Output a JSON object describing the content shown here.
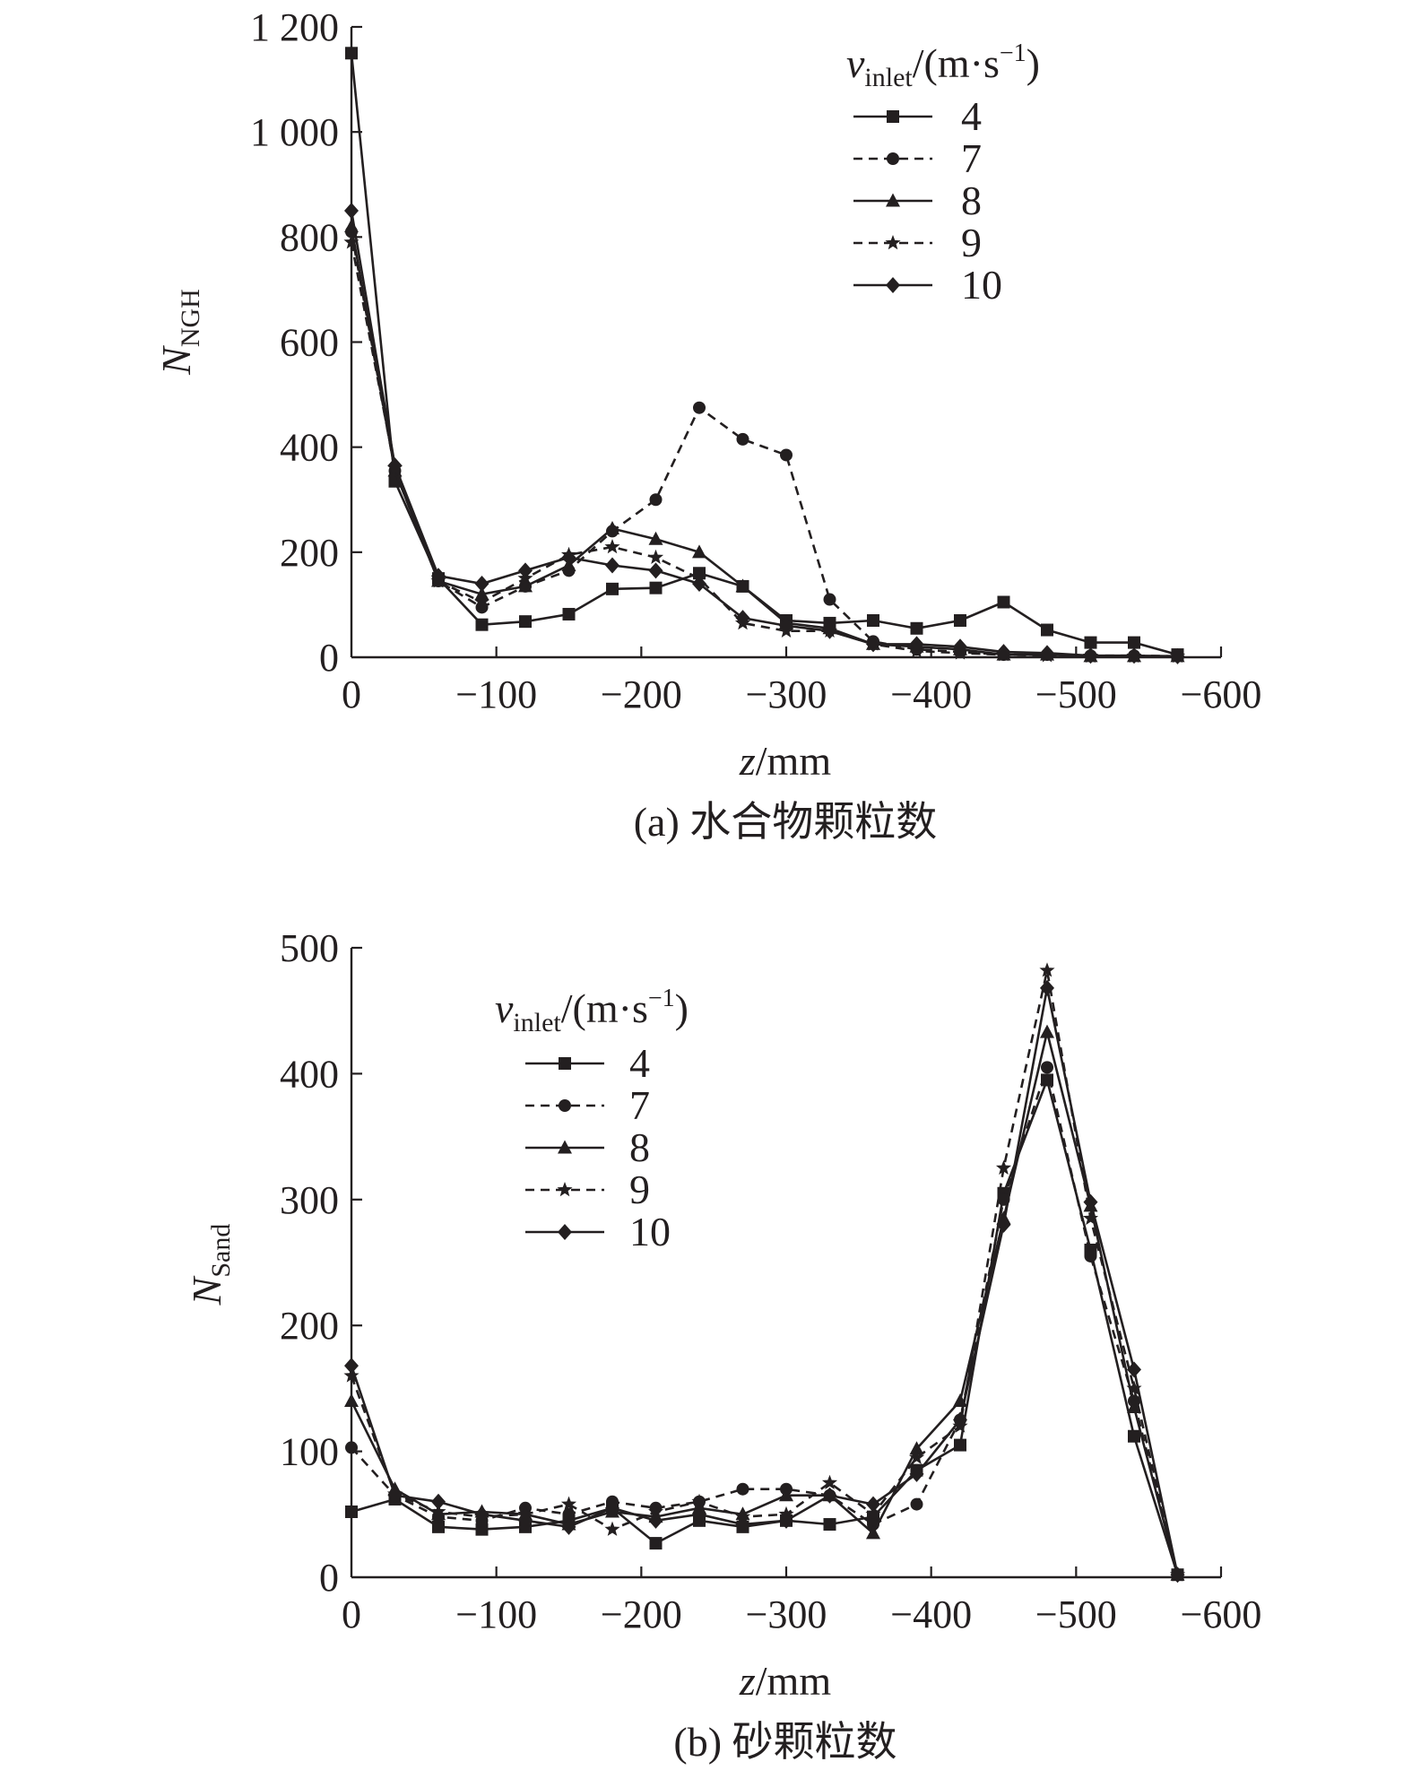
{
  "chart_data": [
    {
      "type": "line",
      "panel": "a",
      "caption": "(a) 水合物颗粒数",
      "xlabel_var": "z",
      "xlabel_unit": "/mm",
      "ylabel_var": "N",
      "ylabel_sub": "NGH",
      "xlim": [
        0,
        -600
      ],
      "ylim": [
        0,
        1200
      ],
      "x_ticks": [
        0,
        -100,
        -200,
        -300,
        -400,
        -500,
        -600
      ],
      "x_tick_labels": [
        "0",
        "−100",
        "−200",
        "−300",
        "−400",
        "−500",
        "−600"
      ],
      "y_ticks": [
        0,
        200,
        400,
        600,
        800,
        1000,
        1200
      ],
      "y_tick_labels": [
        "0",
        "200",
        "400",
        "600",
        "800",
        "1 000",
        "1 200"
      ],
      "grid": false,
      "legend_position": "top-right",
      "legend_title": {
        "var": "v",
        "sub": "inlet",
        "unit_pre": "/(m·s",
        "sup": "−1",
        "unit_post": ")"
      },
      "x": [
        0,
        -30,
        -60,
        -90,
        -120,
        -150,
        -180,
        -210,
        -240,
        -270,
        -300,
        -330,
        -360,
        -390,
        -420,
        -450,
        -480,
        -510,
        -540,
        -570
      ],
      "series": [
        {
          "name": "4",
          "marker": "square",
          "dash": false,
          "values": [
            1150,
            335,
            150,
            62,
            68,
            82,
            130,
            132,
            160,
            135,
            70,
            65,
            70,
            55,
            70,
            105,
            52,
            28,
            28,
            5
          ]
        },
        {
          "name": "7",
          "marker": "circle",
          "dash": true,
          "values": [
            810,
            355,
            145,
            95,
            135,
            165,
            240,
            300,
            475,
            415,
            385,
            110,
            30,
            15,
            10,
            5,
            5,
            3,
            3,
            2
          ]
        },
        {
          "name": "8",
          "marker": "triangle",
          "dash": false,
          "values": [
            820,
            355,
            145,
            120,
            135,
            175,
            245,
            225,
            200,
            135,
            65,
            55,
            25,
            20,
            15,
            5,
            5,
            2,
            2,
            2
          ]
        },
        {
          "name": "9",
          "marker": "star",
          "dash": true,
          "values": [
            790,
            360,
            145,
            105,
            150,
            195,
            210,
            190,
            150,
            65,
            50,
            50,
            25,
            12,
            8,
            5,
            3,
            2,
            2,
            2
          ]
        },
        {
          "name": "10",
          "marker": "diamond",
          "dash": false,
          "values": [
            850,
            365,
            155,
            140,
            165,
            190,
            175,
            165,
            140,
            75,
            60,
            50,
            25,
            25,
            20,
            10,
            8,
            3,
            3,
            2
          ]
        }
      ]
    },
    {
      "type": "line",
      "panel": "b",
      "caption": "(b) 砂颗粒数",
      "xlabel_var": "z",
      "xlabel_unit": "/mm",
      "ylabel_var": "N",
      "ylabel_sub": "Sand",
      "xlim": [
        0,
        -600
      ],
      "ylim": [
        0,
        500
      ],
      "x_ticks": [
        0,
        -100,
        -200,
        -300,
        -400,
        -500,
        -600
      ],
      "x_tick_labels": [
        "0",
        "−100",
        "−200",
        "−300",
        "−400",
        "−500",
        "−600"
      ],
      "y_ticks": [
        0,
        100,
        200,
        300,
        400,
        500
      ],
      "y_tick_labels": [
        "0",
        "100",
        "200",
        "300",
        "400",
        "500"
      ],
      "grid": false,
      "legend_position": "top-left",
      "legend_title": {
        "var": "v",
        "sub": "inlet",
        "unit_pre": "/(m·s",
        "sup": "−1",
        "unit_post": ")"
      },
      "x": [
        0,
        -30,
        -60,
        -90,
        -120,
        -150,
        -180,
        -210,
        -240,
        -270,
        -300,
        -330,
        -360,
        -390,
        -420,
        -450,
        -480,
        -510,
        -540,
        -570
      ],
      "series": [
        {
          "name": "4",
          "marker": "square",
          "dash": false,
          "values": [
            52,
            62,
            40,
            38,
            40,
            45,
            55,
            27,
            45,
            40,
            45,
            42,
            48,
            85,
            105,
            305,
            395,
            260,
            112,
            2
          ]
        },
        {
          "name": "7",
          "marker": "circle",
          "dash": true,
          "values": [
            103,
            65,
            48,
            45,
            55,
            50,
            60,
            55,
            60,
            70,
            70,
            65,
            42,
            58,
            125,
            300,
            405,
            255,
            140,
            2
          ]
        },
        {
          "name": "8",
          "marker": "triangle",
          "dash": false,
          "values": [
            140,
            70,
            50,
            52,
            50,
            42,
            52,
            48,
            55,
            50,
            65,
            65,
            35,
            102,
            140,
            285,
            433,
            295,
            135,
            2
          ]
        },
        {
          "name": "9",
          "marker": "star",
          "dash": true,
          "values": [
            160,
            66,
            52,
            48,
            50,
            58,
            38,
            52,
            60,
            48,
            50,
            75,
            50,
            95,
            120,
            325,
            482,
            285,
            150,
            2
          ]
        },
        {
          "name": "10",
          "marker": "diamond",
          "dash": false,
          "values": [
            168,
            65,
            60,
            50,
            45,
            40,
            55,
            45,
            50,
            42,
            45,
            65,
            58,
            82,
            125,
            280,
            468,
            298,
            165,
            2
          ]
        }
      ]
    }
  ]
}
